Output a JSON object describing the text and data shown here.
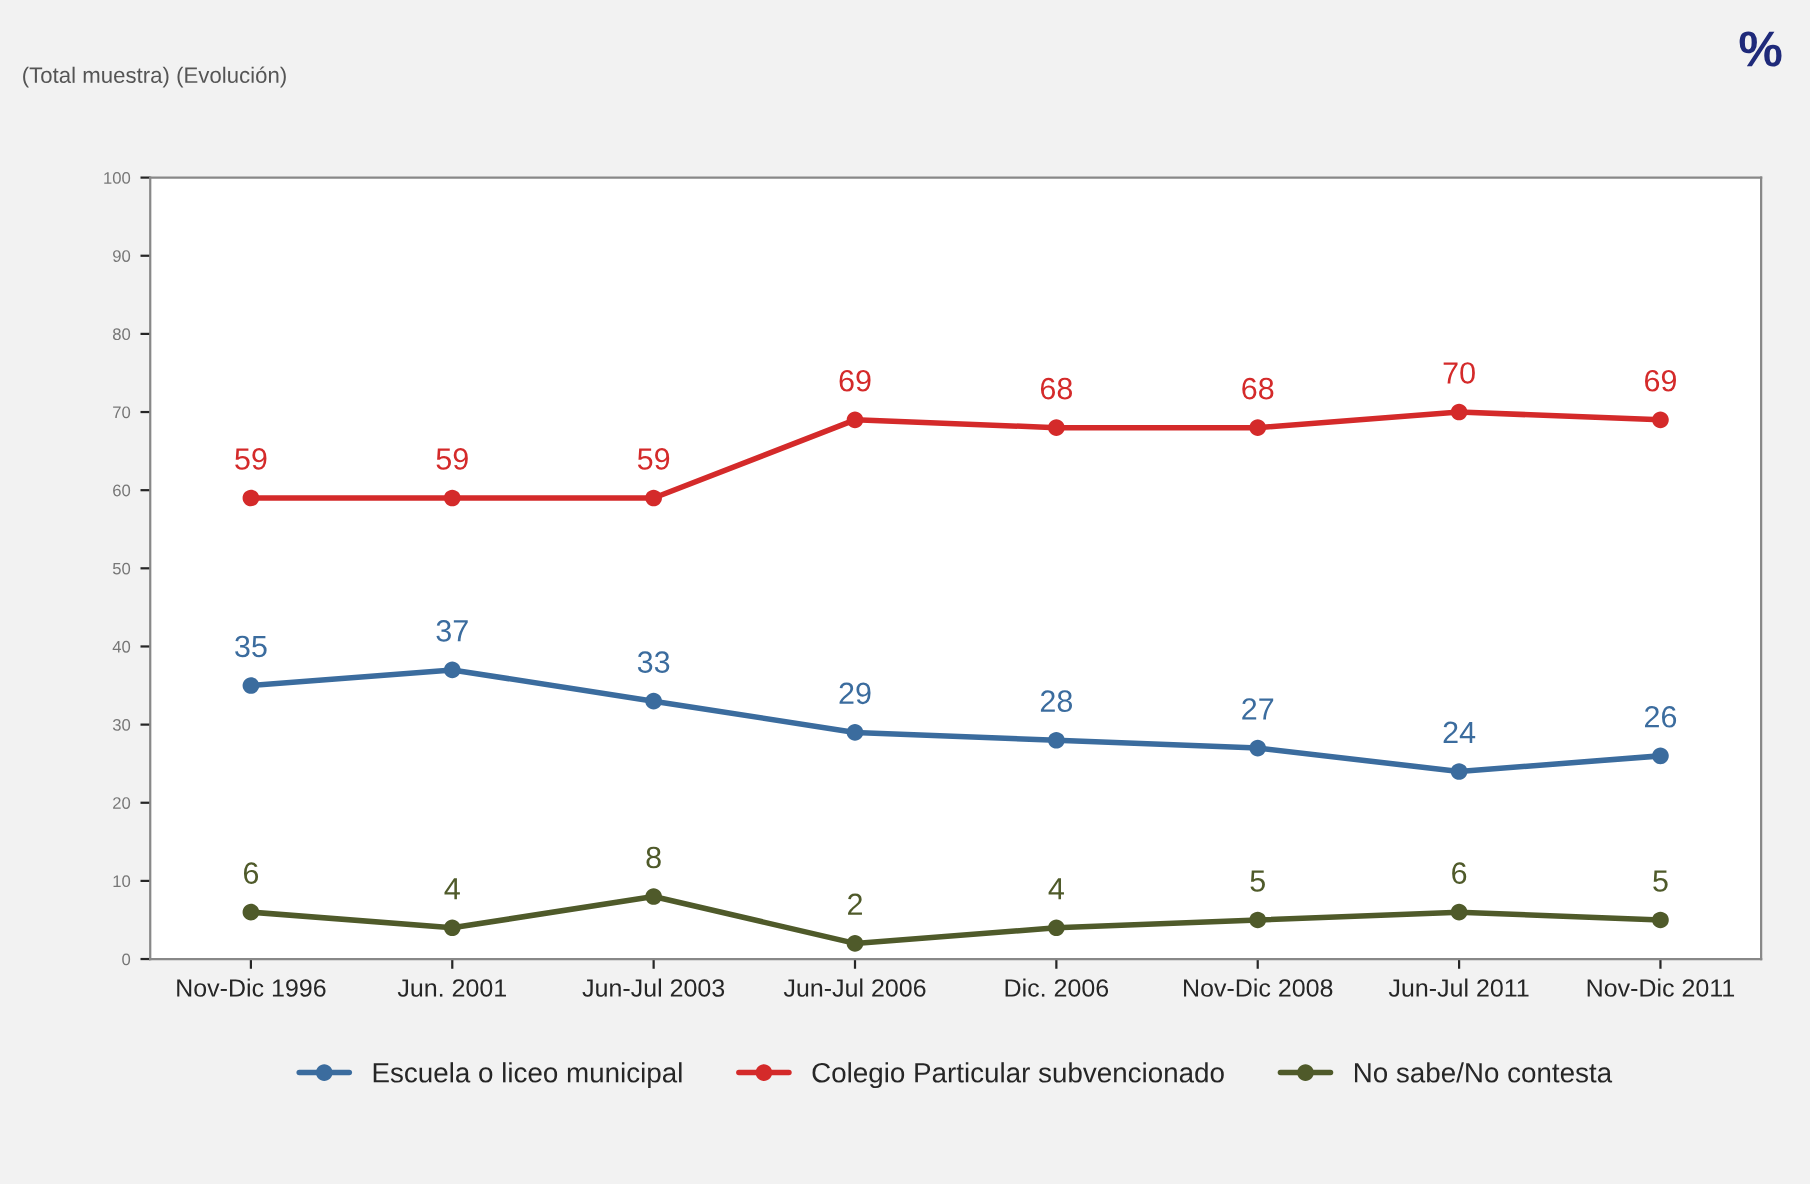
{
  "chart_data": {
    "type": "line",
    "title": "(Total muestra) (Evolución)",
    "annotations": [
      "%"
    ],
    "categories": [
      "Nov-Dic 1996",
      "Jun. 2001",
      "Jun-Jul 2003",
      "Jun-Jul 2006",
      "Dic. 2006",
      "Nov-Dic 2008",
      "Jun-Jul 2011",
      "Nov-Dic 2011"
    ],
    "series": [
      {
        "name": "Escuela o liceo municipal",
        "color": "#3b6c9e",
        "values": [
          35,
          37,
          33,
          29,
          28,
          27,
          24,
          26
        ]
      },
      {
        "name": "Colegio Particular subvencionado",
        "color": "#d42a2a",
        "values": [
          59,
          59,
          59,
          69,
          68,
          68,
          70,
          69
        ]
      },
      {
        "name": "No sabe/No contesta",
        "color": "#4f5a2a",
        "values": [
          6,
          4,
          8,
          2,
          4,
          5,
          6,
          5
        ]
      }
    ],
    "ylim": [
      0,
      100
    ],
    "yticks": [
      0,
      10,
      20,
      30,
      40,
      50,
      60,
      70,
      80,
      90,
      100
    ],
    "grid": false,
    "legend": "bottom",
    "marker": "circle",
    "line_style": "solid",
    "data_labels": true
  }
}
